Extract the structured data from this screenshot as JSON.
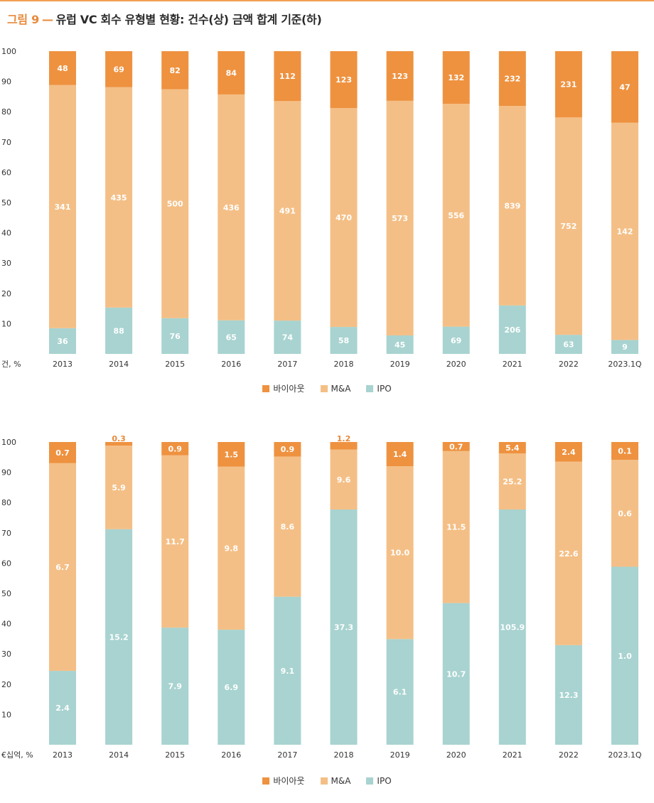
{
  "figure": {
    "label": "그림 9",
    "dash": "—",
    "title": "유럽 VC 회수 유형별 현황: 건수(상) 금액 합계 기준(하)"
  },
  "colors": {
    "buyout": "#ee9240",
    "ma": "#f4bf86",
    "ipo": "#a8d3d0",
    "accent": "#e8893a"
  },
  "legend": [
    {
      "name": "바이아웃",
      "color": "#ee9240"
    },
    {
      "name": "M&A",
      "color": "#f4bf86"
    },
    {
      "name": "IPO",
      "color": "#a8d3d0"
    }
  ],
  "chart_data": [
    {
      "type": "bar",
      "stacked": true,
      "ylabel": "건, %",
      "ylim": [
        0,
        100
      ],
      "yticks": [
        10,
        20,
        30,
        40,
        50,
        60,
        70,
        80,
        90,
        100
      ],
      "categories": [
        "2013",
        "2014",
        "2015",
        "2016",
        "2017",
        "2018",
        "2019",
        "2020",
        "2021",
        "2022",
        "2023.1Q"
      ],
      "series": [
        {
          "name": "IPO",
          "color": "#a8d3d0",
          "labels": [
            "36",
            "88",
            "76",
            "65",
            "74",
            "58",
            "45",
            "69",
            "206",
            "63",
            "9"
          ],
          "values": [
            8.5,
            15.3,
            11.8,
            11.1,
            11.0,
            8.9,
            6.1,
            9.0,
            16.0,
            6.3,
            4.6
          ]
        },
        {
          "name": "M&A",
          "color": "#f4bf86",
          "labels": [
            "341",
            "435",
            "500",
            "436",
            "491",
            "470",
            "573",
            "556",
            "839",
            "752",
            "142"
          ],
          "values": [
            80.3,
            72.8,
            75.6,
            74.6,
            72.5,
            72.3,
            77.5,
            73.6,
            65.9,
            71.8,
            71.8
          ]
        },
        {
          "name": "바이아웃",
          "color": "#ee9240",
          "labels": [
            "48",
            "69",
            "82",
            "84",
            "112",
            "123",
            "123",
            "132",
            "232",
            "231",
            "47"
          ],
          "values": [
            11.2,
            11.9,
            12.6,
            14.3,
            16.5,
            18.8,
            16.4,
            17.4,
            18.1,
            21.9,
            23.6
          ]
        }
      ]
    },
    {
      "type": "bar",
      "stacked": true,
      "ylabel": "€십억, %",
      "ylim": [
        0,
        100
      ],
      "yticks": [
        10,
        20,
        30,
        40,
        50,
        60,
        70,
        80,
        90,
        100
      ],
      "categories": [
        "2013",
        "2014",
        "2015",
        "2016",
        "2017",
        "2018",
        "2019",
        "2020",
        "2021",
        "2022",
        "2023.1Q"
      ],
      "series": [
        {
          "name": "IPO",
          "color": "#a8d3d0",
          "labels": [
            "2.4",
            "15.2",
            "7.9",
            "6.9",
            "9.1",
            "37.3",
            "6.1",
            "10.7",
            "105.9",
            "12.3",
            "1.0"
          ],
          "values": [
            24.4,
            71.2,
            38.7,
            38.0,
            48.9,
            77.7,
            34.9,
            46.8,
            77.7,
            32.9,
            58.8
          ]
        },
        {
          "name": "M&A",
          "color": "#f4bf86",
          "labels": [
            "6.7",
            "5.9",
            "11.7",
            "9.8",
            "8.6",
            "9.6",
            "10.0",
            "11.5",
            "25.2",
            "22.6",
            "0.6"
          ],
          "values": [
            68.6,
            27.6,
            56.9,
            53.9,
            46.3,
            19.8,
            57.1,
            50.2,
            18.5,
            60.6,
            35.3
          ]
        },
        {
          "name": "바이아웃",
          "color": "#ee9240",
          "labels": [
            "0.7",
            "0.3",
            "0.9",
            "1.5",
            "0.9",
            "1.2",
            "1.4",
            "0.7",
            "5.4",
            "2.4",
            "0.1"
          ],
          "values": [
            7.0,
            1.2,
            4.4,
            8.1,
            4.8,
            2.5,
            8.0,
            3.0,
            3.8,
            6.5,
            5.9
          ]
        }
      ]
    }
  ]
}
